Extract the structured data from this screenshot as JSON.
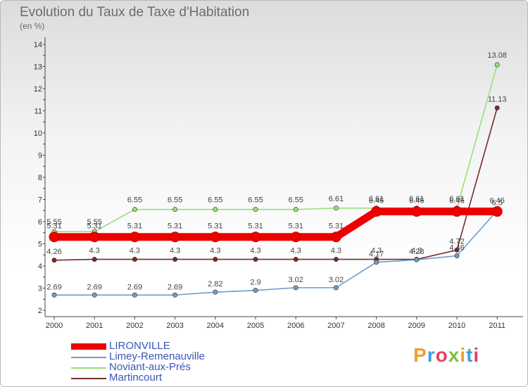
{
  "chart_data": {
    "type": "line",
    "title": "Evolution du Taux de Taxe d'Habitation",
    "unit_label": "(en %)",
    "xlabel": "",
    "ylabel": "",
    "ylim": [
      2,
      14
    ],
    "y_ticks": [
      "2",
      "3",
      "4",
      "5",
      "6",
      "7",
      "8",
      "9",
      "10",
      "11",
      "12",
      "13",
      "14"
    ],
    "categories": [
      "2000",
      "2001",
      "2002",
      "2003",
      "2004",
      "2005",
      "2006",
      "2007",
      "2008",
      "2009",
      "2010",
      "2011"
    ],
    "series": [
      {
        "name": "LIRONVILLE",
        "color": "#ee0000",
        "values": [
          5.31,
          5.31,
          5.31,
          5.31,
          5.31,
          5.31,
          5.31,
          5.31,
          6.46,
          6.46,
          6.46,
          6.46
        ],
        "labels": [
          "5.31",
          "5.31",
          "5.31",
          "5.31",
          "5.31",
          "5.31",
          "5.31",
          "5.31",
          "6.46",
          "6.46",
          "6.46",
          "6.46"
        ]
      },
      {
        "name": "Limey-Remenauville",
        "color": "#6b9dc9",
        "values": [
          2.69,
          2.69,
          2.69,
          2.69,
          2.82,
          2.9,
          3.02,
          3.02,
          4.17,
          4.28,
          4.46,
          6.5
        ],
        "labels": [
          "2.69",
          "2.69",
          "2.69",
          "2.69",
          "2.82",
          "2.9",
          "3.02",
          "3.02",
          "4.17",
          "4.28",
          "4.46",
          "6.5"
        ]
      },
      {
        "name": "Noviant-aux-Prés",
        "color": "#99e07a",
        "values": [
          5.55,
          5.55,
          6.55,
          6.55,
          6.55,
          6.55,
          6.55,
          6.61,
          6.61,
          6.61,
          6.61,
          13.08
        ],
        "labels": [
          "5.55",
          "5.55",
          "6.55",
          "6.55",
          "6.55",
          "6.55",
          "6.55",
          "6.61",
          "6.61",
          "6.61",
          "6.61",
          "13.08"
        ]
      },
      {
        "name": "Martincourt",
        "color": "#7a2a2a",
        "values": [
          4.26,
          4.3,
          4.3,
          4.3,
          4.3,
          4.3,
          4.3,
          4.3,
          4.3,
          4.3,
          4.72,
          11.13
        ],
        "labels": [
          "4.26",
          "4.3",
          "4.3",
          "4.3",
          "4.3",
          "4.3",
          "4.3",
          "4.3",
          "4.3",
          "4.3",
          "4.72",
          "11.13"
        ]
      }
    ]
  },
  "logo": {
    "letters": [
      "P",
      "r",
      "o",
      "x",
      "i",
      "t",
      "i"
    ],
    "colors": [
      "#f0a030",
      "#3aa0dc",
      "#e84060",
      "#7cc242",
      "#f0a030",
      "#3aa0dc",
      "#e84060"
    ]
  }
}
